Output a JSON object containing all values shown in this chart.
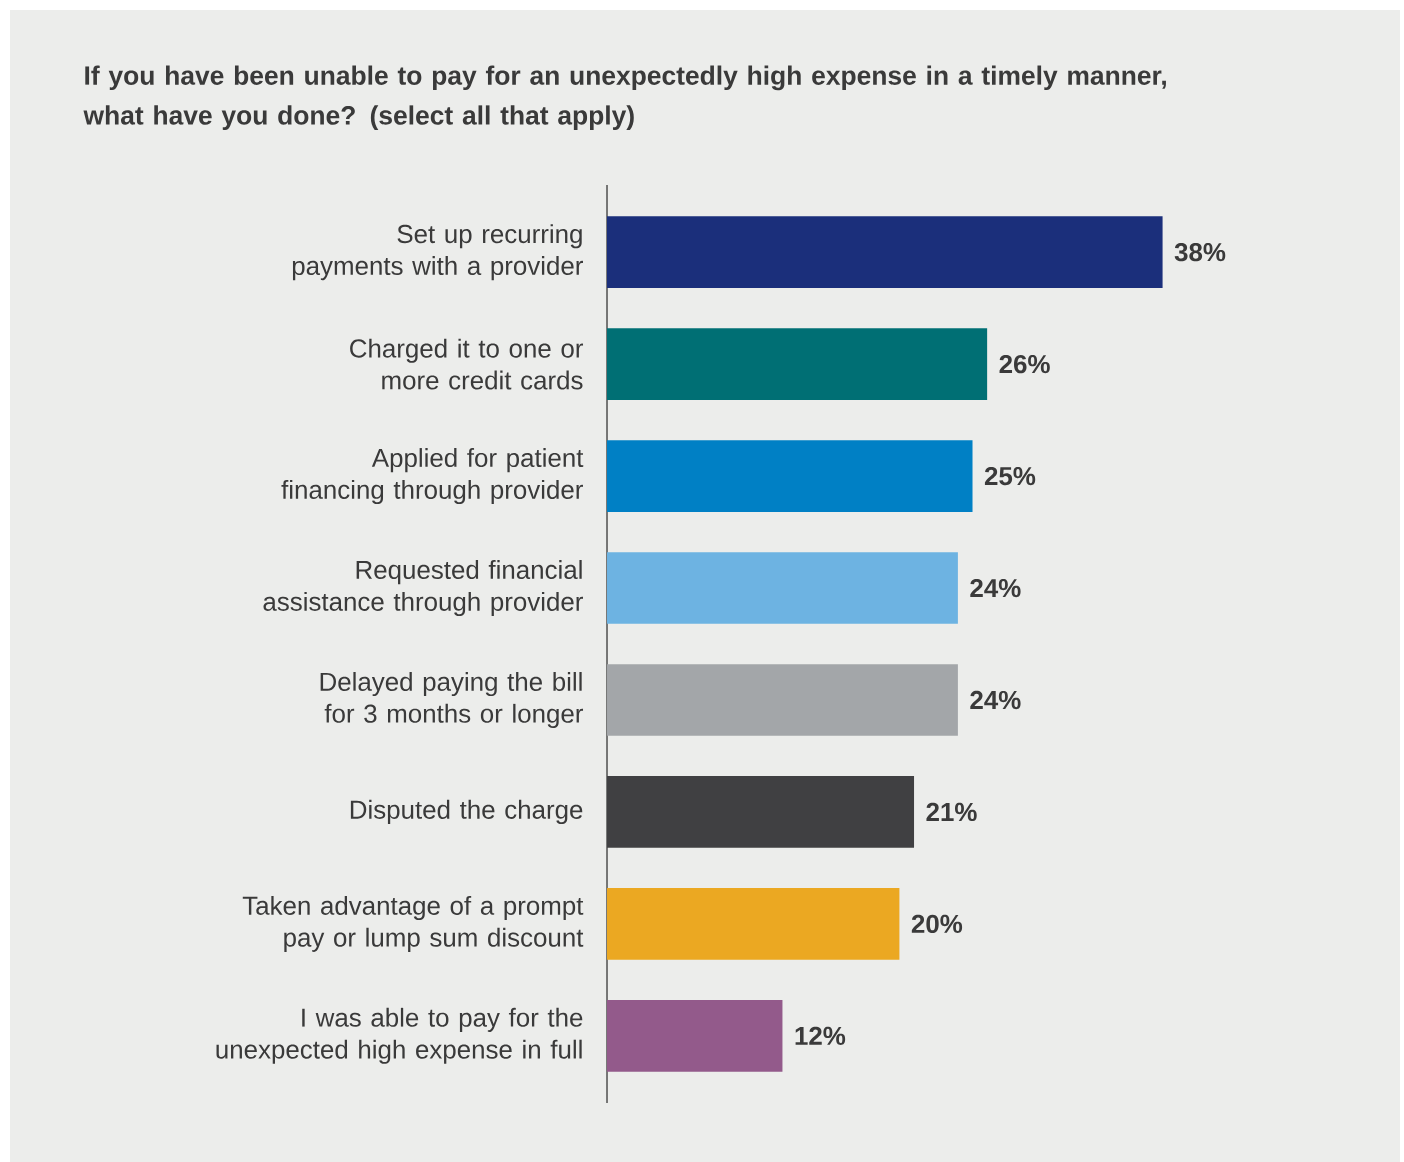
{
  "chart_data": {
    "type": "bar",
    "orientation": "horizontal",
    "title": "If you have been unable to pay for an unexpectedly high expense in a timely manner, what have you done? (select all that apply)",
    "categories": [
      "Set up recurring payments with a provider",
      "Charged it to one or more credit cards",
      "Applied for patient financing through provider",
      "Requested financial assistance through provider",
      "Delayed paying the bill for 3 months or longer",
      "Disputed the charge",
      "Taken advantage of a prompt pay or lump sum discount",
      "I was able to pay for the unexpected high expense in full"
    ],
    "values": [
      38,
      26,
      25,
      24,
      24,
      21,
      20,
      12
    ],
    "value_labels": [
      "38%",
      "26%",
      "25%",
      "24%",
      "24%",
      "21%",
      "20%",
      "12%"
    ],
    "colors": [
      "#1b2f7b",
      "#006f74",
      "#0080c5",
      "#6db3e2",
      "#a3a6a9",
      "#404042",
      "#eba822",
      "#935a8b"
    ]
  }
}
